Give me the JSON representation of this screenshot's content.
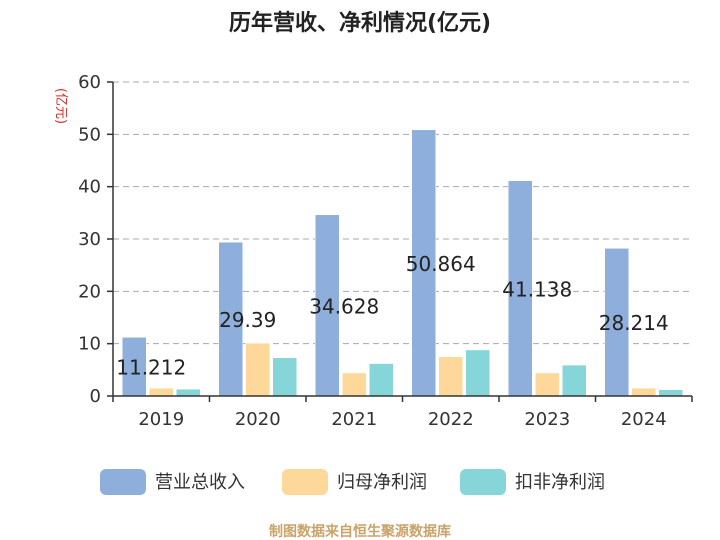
{
  "chart_data": {
    "type": "bar",
    "title": "历年营收、净利情况(亿元)",
    "unit_label": "(亿元)",
    "categories": [
      "2019",
      "2020",
      "2021",
      "2022",
      "2023",
      "2024"
    ],
    "series": [
      {
        "name": "营业总收入",
        "color": "#8eaedb",
        "values": [
          11.212,
          29.39,
          34.628,
          50.864,
          41.138,
          28.214
        ]
      },
      {
        "name": "归母净利润",
        "color": "#fdd89a",
        "values": [
          1.5,
          10.1,
          4.4,
          7.5,
          4.4,
          1.5
        ]
      },
      {
        "name": "扣非净利润",
        "color": "#86d5d8",
        "values": [
          1.3,
          7.3,
          6.2,
          8.8,
          5.9,
          1.2
        ]
      }
    ],
    "data_labels": [
      "11.212",
      "29.39",
      "34.628",
      "50.864",
      "41.138",
      "28.214"
    ],
    "ylim": [
      0,
      60
    ],
    "yticks": [
      "0",
      "10",
      "20",
      "30",
      "40",
      "50",
      "60"
    ],
    "grid": true,
    "legend_position": "bottom"
  },
  "source": "制图数据来自恒生聚源数据库"
}
